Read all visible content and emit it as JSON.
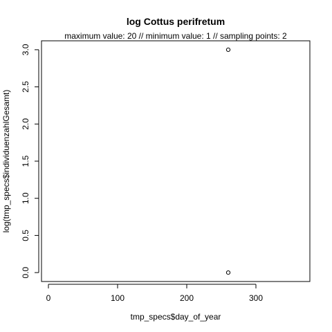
{
  "chart_data": {
    "type": "scatter",
    "title": "log Cottus perifretum",
    "subtitle": "maximum value: 20  //  minimum value: 1  // sampling points: 2",
    "xlabel": "tmp_specs$day_of_year",
    "ylabel": "log(tmp_specs$individuenzahlGesamt)",
    "xlim": [
      -10,
      378
    ],
    "ylim": [
      -0.12,
      3.12
    ],
    "x_ticks": [
      0,
      100,
      200,
      300
    ],
    "y_ticks": [
      0.0,
      0.5,
      1.0,
      1.5,
      2.0,
      2.5,
      3.0
    ],
    "x_tick_labels": [
      "0",
      "100",
      "200",
      "300"
    ],
    "y_tick_labels": [
      "0.0",
      "0.5",
      "1.0",
      "1.5",
      "2.0",
      "2.5",
      "3.0"
    ],
    "grid": false,
    "legend": "none",
    "x": [
      260,
      260
    ],
    "y": [
      0.0,
      3.0
    ]
  }
}
